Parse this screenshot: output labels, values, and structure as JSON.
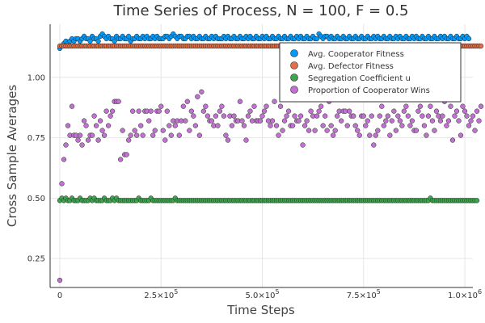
{
  "chart_data": {
    "type": "scatter",
    "title": "Time Series of Process, N = 100, F = 0.5",
    "xlabel": "Time Steps",
    "ylabel": "Cross Sample Averages",
    "xlim": [
      0,
      1000000
    ],
    "ylim": [
      0.13,
      1.22
    ],
    "x_ticks": [
      {
        "value": 0,
        "label": "0"
      },
      {
        "value": 250000,
        "label": "2.5×10",
        "exp": "5"
      },
      {
        "value": 500000,
        "label": "5.0×10",
        "exp": "5"
      },
      {
        "value": 750000,
        "label": "7.5×10",
        "exp": "5"
      },
      {
        "value": 1000000,
        "label": "1.0×10",
        "exp": "6"
      }
    ],
    "y_ticks": [
      {
        "value": 0.25,
        "label": "0.25"
      },
      {
        "value": 0.5,
        "label": "0.50"
      },
      {
        "value": 0.75,
        "label": "0.75"
      },
      {
        "value": 1.0,
        "label": "1.00"
      }
    ],
    "grid": true,
    "legend_position": "top-right",
    "x": {
      "start": 0,
      "step": 5000,
      "count": 201
    },
    "series": [
      {
        "name": "Avg. Cooperator Fitness",
        "color": "#009AFA",
        "values": [
          1.12,
          1.13,
          1.14,
          1.15,
          1.14,
          1.15,
          1.16,
          1.15,
          1.16,
          1.16,
          1.15,
          1.16,
          1.17,
          1.16,
          1.16,
          1.15,
          1.17,
          1.16,
          1.16,
          1.15,
          1.17,
          1.18,
          1.17,
          1.16,
          1.17,
          1.16,
          1.16,
          1.15,
          1.17,
          1.16,
          1.16,
          1.17,
          1.16,
          1.16,
          1.17,
          1.15,
          1.16,
          1.16,
          1.17,
          1.16,
          1.16,
          1.17,
          1.16,
          1.17,
          1.16,
          1.16,
          1.17,
          1.16,
          1.17,
          1.16,
          1.16,
          1.16,
          1.17,
          1.17,
          1.16,
          1.17,
          1.18,
          1.17,
          1.16,
          1.17,
          1.17,
          1.16,
          1.16,
          1.17,
          1.17,
          1.16,
          1.17,
          1.16,
          1.16,
          1.17,
          1.16,
          1.16,
          1.17,
          1.16,
          1.16,
          1.17,
          1.16,
          1.17,
          1.16,
          1.16,
          1.16,
          1.17,
          1.16,
          1.17,
          1.16,
          1.16,
          1.17,
          1.16,
          1.16,
          1.17,
          1.16,
          1.16,
          1.17,
          1.16,
          1.17,
          1.16,
          1.16,
          1.17,
          1.16,
          1.16,
          1.17,
          1.16,
          1.17,
          1.16,
          1.16,
          1.17,
          1.16,
          1.16,
          1.17,
          1.16,
          1.16,
          1.17,
          1.16,
          1.16,
          1.17,
          1.16,
          1.16,
          1.17,
          1.16,
          1.17,
          1.16,
          1.16,
          1.17,
          1.16,
          1.16,
          1.17,
          1.16,
          1.16,
          1.18,
          1.17,
          1.16,
          1.17,
          1.17,
          1.16,
          1.17,
          1.16,
          1.16,
          1.17,
          1.16,
          1.16,
          1.17,
          1.16,
          1.16,
          1.17,
          1.16,
          1.16,
          1.17,
          1.16,
          1.16,
          1.17,
          1.16,
          1.16,
          1.17,
          1.16,
          1.16,
          1.17,
          1.16,
          1.17,
          1.16,
          1.16,
          1.17,
          1.16,
          1.16,
          1.17,
          1.16,
          1.16,
          1.17,
          1.16,
          1.17,
          1.16,
          1.16,
          1.17,
          1.16,
          1.16,
          1.17,
          1.16,
          1.17,
          1.16,
          1.16,
          1.17,
          1.16,
          1.16,
          1.17,
          1.16,
          1.16,
          1.17,
          1.16,
          1.16,
          1.17,
          1.16,
          1.17,
          1.16,
          1.16,
          1.17,
          1.16,
          1.16,
          1.17,
          1.16,
          1.16,
          1.17,
          1.16,
          1.17,
          1.16
        ]
      },
      {
        "name": "Avg. Defector Fitness",
        "color": "#E26F46",
        "values": [
          1.13,
          1.13,
          1.13,
          1.13,
          1.13,
          1.13,
          1.13,
          1.13,
          1.13,
          1.13,
          1.13,
          1.13,
          1.13,
          1.13,
          1.13,
          1.13,
          1.13,
          1.13,
          1.13,
          1.13,
          1.13,
          1.13,
          1.13,
          1.13,
          1.13,
          1.13,
          1.13,
          1.13,
          1.13,
          1.13,
          1.13,
          1.13,
          1.13,
          1.13,
          1.13,
          1.13,
          1.13,
          1.13,
          1.13,
          1.13,
          1.13,
          1.13,
          1.13,
          1.13,
          1.13,
          1.13,
          1.13,
          1.13,
          1.13,
          1.13,
          1.13,
          1.13,
          1.13,
          1.13,
          1.13,
          1.13,
          1.13,
          1.13,
          1.13,
          1.13,
          1.13,
          1.13,
          1.13,
          1.13,
          1.13,
          1.13,
          1.13,
          1.13,
          1.13,
          1.13,
          1.13,
          1.13,
          1.13,
          1.13,
          1.13,
          1.13,
          1.13,
          1.13,
          1.13,
          1.13,
          1.13,
          1.13,
          1.13,
          1.13,
          1.13,
          1.13,
          1.13,
          1.13,
          1.13,
          1.13,
          1.13,
          1.13,
          1.13,
          1.13,
          1.13,
          1.13,
          1.13,
          1.13,
          1.13,
          1.13,
          1.13,
          1.13,
          1.13,
          1.13,
          1.13,
          1.13,
          1.13,
          1.13,
          1.13,
          1.13,
          1.13,
          1.13,
          1.13,
          1.13,
          1.13,
          1.13,
          1.13,
          1.13,
          1.13,
          1.13,
          1.13,
          1.13,
          1.13,
          1.13,
          1.13,
          1.13,
          1.13,
          1.13,
          1.13,
          1.13,
          1.13,
          1.13,
          1.13,
          1.13,
          1.13,
          1.13,
          1.13,
          1.13,
          1.13,
          1.13,
          1.13,
          1.13,
          1.13,
          1.13,
          1.13,
          1.13,
          1.13,
          1.13,
          1.13,
          1.13,
          1.13,
          1.13,
          1.13,
          1.13,
          1.13,
          1.13,
          1.13,
          1.13,
          1.13,
          1.13,
          1.13,
          1.13,
          1.13,
          1.13,
          1.13,
          1.13,
          1.13,
          1.13,
          1.13,
          1.13,
          1.13,
          1.13,
          1.13,
          1.13,
          1.13,
          1.13,
          1.13,
          1.13,
          1.13,
          1.13,
          1.13,
          1.13,
          1.13,
          1.13,
          1.13,
          1.13,
          1.13,
          1.13,
          1.13,
          1.13,
          1.13,
          1.13,
          1.13,
          1.13,
          1.13,
          1.13,
          1.13,
          1.13,
          1.13,
          1.13,
          1.13,
          1.13,
          1.13,
          1.13,
          1.13,
          1.13,
          1.13,
          1.13,
          1.13
        ]
      },
      {
        "name": "Segregation Coefficient u",
        "color": "#3EA44E",
        "values": [
          0.49,
          0.5,
          0.49,
          0.5,
          0.49,
          0.49,
          0.5,
          0.49,
          0.49,
          0.49,
          0.5,
          0.49,
          0.49,
          0.49,
          0.49,
          0.5,
          0.49,
          0.5,
          0.49,
          0.49,
          0.49,
          0.49,
          0.5,
          0.49,
          0.49,
          0.49,
          0.5,
          0.49,
          0.5,
          0.49,
          0.49,
          0.49,
          0.49,
          0.49,
          0.49,
          0.49,
          0.49,
          0.49,
          0.49,
          0.5,
          0.49,
          0.49,
          0.49,
          0.49,
          0.49,
          0.5,
          0.49,
          0.49,
          0.49,
          0.49,
          0.49,
          0.49,
          0.49,
          0.49,
          0.49,
          0.49,
          0.49,
          0.5,
          0.49,
          0.49,
          0.49,
          0.49,
          0.49,
          0.49,
          0.49,
          0.49,
          0.49,
          0.49,
          0.49,
          0.49,
          0.49,
          0.49,
          0.49,
          0.49,
          0.49,
          0.49,
          0.49,
          0.49,
          0.49,
          0.49,
          0.49,
          0.49,
          0.49,
          0.49,
          0.49,
          0.49,
          0.49,
          0.49,
          0.49,
          0.49,
          0.49,
          0.49,
          0.49,
          0.49,
          0.49,
          0.49,
          0.49,
          0.49,
          0.49,
          0.49,
          0.49,
          0.49,
          0.49,
          0.49,
          0.49,
          0.49,
          0.49,
          0.49,
          0.49,
          0.49,
          0.49,
          0.49,
          0.49,
          0.49,
          0.49,
          0.49,
          0.49,
          0.49,
          0.49,
          0.49,
          0.49,
          0.49,
          0.49,
          0.49,
          0.49,
          0.49,
          0.49,
          0.49,
          0.49,
          0.49,
          0.49,
          0.49,
          0.49,
          0.49,
          0.49,
          0.49,
          0.49,
          0.49,
          0.49,
          0.49,
          0.49,
          0.49,
          0.49,
          0.49,
          0.49,
          0.49,
          0.49,
          0.49,
          0.49,
          0.49,
          0.49,
          0.49,
          0.49,
          0.49,
          0.49,
          0.49,
          0.49,
          0.49,
          0.49,
          0.49,
          0.49,
          0.49,
          0.49,
          0.49,
          0.49,
          0.49,
          0.49,
          0.49,
          0.49,
          0.49,
          0.49,
          0.49,
          0.49,
          0.49,
          0.49,
          0.49,
          0.49,
          0.49,
          0.49,
          0.49,
          0.49,
          0.49,
          0.49,
          0.5,
          0.49,
          0.49,
          0.49,
          0.49,
          0.49,
          0.49,
          0.49,
          0.49,
          0.49,
          0.49,
          0.49,
          0.49,
          0.49,
          0.49,
          0.49,
          0.49,
          0.49,
          0.49,
          0.49,
          0.49,
          0.49,
          0.49,
          0.49
        ]
      },
      {
        "name": "Proportion of Cooperator Wins",
        "color": "#C271D2",
        "values": [
          0.16,
          0.56,
          0.66,
          0.72,
          0.8,
          0.76,
          0.88,
          0.76,
          0.76,
          0.74,
          0.76,
          0.72,
          0.82,
          0.8,
          0.74,
          0.76,
          0.76,
          0.84,
          0.8,
          0.74,
          0.82,
          0.78,
          0.76,
          0.86,
          0.8,
          0.84,
          0.86,
          0.9,
          0.9,
          0.9,
          0.66,
          0.78,
          0.68,
          0.68,
          0.74,
          0.76,
          0.86,
          0.78,
          0.76,
          0.86,
          0.8,
          0.76,
          0.86,
          0.86,
          0.82,
          0.86,
          0.76,
          0.78,
          0.86,
          0.86,
          0.88,
          0.78,
          0.74,
          0.86,
          0.8,
          0.76,
          0.82,
          0.8,
          0.82,
          0.76,
          0.82,
          0.88,
          0.82,
          0.9,
          0.78,
          0.86,
          0.84,
          0.8,
          0.92,
          0.76,
          0.94,
          0.86,
          0.88,
          0.84,
          0.82,
          0.82,
          0.8,
          0.84,
          0.8,
          0.86,
          0.88,
          0.84,
          0.76,
          0.74,
          0.84,
          0.8,
          0.84,
          0.82,
          0.82,
          0.9,
          0.82,
          0.8,
          0.74,
          0.84,
          0.86,
          0.82,
          0.88,
          0.82,
          0.82,
          0.82,
          0.84,
          0.86,
          0.88,
          0.82,
          0.8,
          0.82,
          0.9,
          0.8,
          0.76,
          0.88,
          0.78,
          0.82,
          0.84,
          0.86,
          0.8,
          0.8,
          0.84,
          0.82,
          0.82,
          0.84,
          0.72,
          0.8,
          0.82,
          0.78,
          0.86,
          0.84,
          0.78,
          0.84,
          0.86,
          0.88,
          0.8,
          0.84,
          0.78,
          0.9,
          0.8,
          0.76,
          0.78,
          0.84,
          0.86,
          0.82,
          0.86,
          0.86,
          0.8,
          0.86,
          0.84,
          0.84,
          0.8,
          0.78,
          0.76,
          0.84,
          0.84,
          0.8,
          0.82,
          0.76,
          0.84,
          0.72,
          0.76,
          0.78,
          0.84,
          0.88,
          0.8,
          0.82,
          0.84,
          0.76,
          0.82,
          0.86,
          0.78,
          0.84,
          0.82,
          0.8,
          0.86,
          0.88,
          0.84,
          0.8,
          0.82,
          0.78,
          0.78,
          0.86,
          0.88,
          0.84,
          0.8,
          0.76,
          0.84,
          0.88,
          0.82,
          0.78,
          0.86,
          0.84,
          0.82,
          0.84,
          0.9,
          0.8,
          0.82,
          0.88,
          0.74,
          0.84,
          0.86,
          0.82,
          0.76,
          0.88,
          0.86,
          0.84,
          0.8,
          0.82,
          0.84,
          0.78,
          0.86,
          0.82,
          0.88
        ]
      }
    ]
  }
}
